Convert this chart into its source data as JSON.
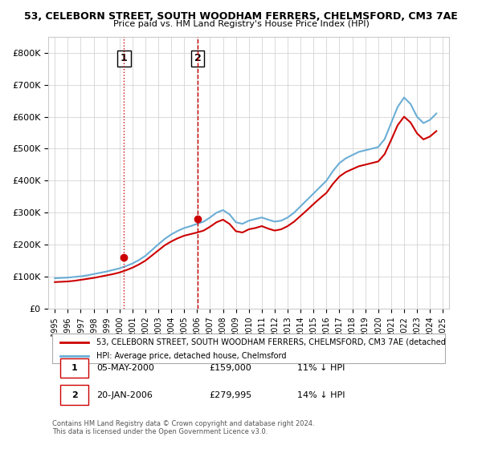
{
  "title": "53, CELEBORN STREET, SOUTH WOODHAM FERRERS, CHELMSFORD, CM3 7AE",
  "subtitle": "Price paid vs. HM Land Registry's House Price Index (HPI)",
  "ylim": [
    0,
    850000
  ],
  "yticks": [
    0,
    100000,
    200000,
    300000,
    400000,
    500000,
    600000,
    700000,
    800000
  ],
  "ytick_labels": [
    "£0",
    "£100K",
    "£200K",
    "£300K",
    "£400K",
    "£500K",
    "£600K",
    "£700K",
    "£800K"
  ],
  "hpi_color": "#6baed6",
  "price_color": "#cc0000",
  "vline_color": "#cc0000",
  "transaction1": {
    "date": 2000.35,
    "price": 159000,
    "label": "1",
    "vline_style": "dotted"
  },
  "transaction2": {
    "date": 2006.05,
    "price": 279995,
    "label": "2",
    "vline_style": "dashed"
  },
  "legend_line1": "53, CELEBORN STREET, SOUTH WOODHAM FERRERS, CHELMSFORD, CM3 7AE (detached",
  "legend_line2": "HPI: Average price, detached house, Chelmsford",
  "table_row1": [
    "1",
    "05-MAY-2000",
    "£159,000",
    "11% ↓ HPI"
  ],
  "table_row2": [
    "2",
    "20-JAN-2006",
    "£279,995",
    "14% ↓ HPI"
  ],
  "footnote": "Contains HM Land Registry data © Crown copyright and database right 2024.\nThis data is licensed under the Open Government Licence v3.0.",
  "background_color": "#ffffff",
  "grid_color": "#cccccc",
  "hpi_data_x": [
    1995,
    1995.5,
    1996,
    1996.5,
    1997,
    1997.5,
    1998,
    1998.5,
    1999,
    1999.5,
    2000,
    2000.5,
    2001,
    2001.5,
    2002,
    2002.5,
    2003,
    2003.5,
    2004,
    2004.5,
    2005,
    2005.5,
    2006,
    2006.5,
    2007,
    2007.5,
    2008,
    2008.5,
    2009,
    2009.5,
    2010,
    2010.5,
    2011,
    2011.5,
    2012,
    2012.5,
    2013,
    2013.5,
    2014,
    2014.5,
    2015,
    2015.5,
    2016,
    2016.5,
    2017,
    2017.5,
    2018,
    2018.5,
    2019,
    2019.5,
    2020,
    2020.5,
    2021,
    2021.5,
    2022,
    2022.5,
    2023,
    2023.5,
    2024,
    2024.5
  ],
  "hpi_data_y": [
    95000,
    96000,
    97000,
    99000,
    101000,
    104000,
    108000,
    112000,
    116000,
    121000,
    126000,
    133000,
    141000,
    152000,
    165000,
    183000,
    201000,
    218000,
    232000,
    243000,
    252000,
    258000,
    265000,
    272000,
    285000,
    300000,
    308000,
    295000,
    270000,
    265000,
    275000,
    280000,
    285000,
    278000,
    272000,
    275000,
    285000,
    300000,
    320000,
    340000,
    360000,
    380000,
    400000,
    430000,
    455000,
    470000,
    480000,
    490000,
    495000,
    500000,
    505000,
    530000,
    580000,
    630000,
    660000,
    640000,
    600000,
    580000,
    590000,
    610000
  ],
  "price_data_x": [
    1995,
    1995.5,
    1996,
    1996.5,
    1997,
    1997.5,
    1998,
    1998.5,
    1999,
    1999.5,
    2000,
    2000.5,
    2001,
    2001.5,
    2002,
    2002.5,
    2003,
    2003.5,
    2004,
    2004.5,
    2005,
    2005.5,
    2006,
    2006.5,
    2007,
    2007.5,
    2008,
    2008.5,
    2009,
    2009.5,
    2010,
    2010.5,
    2011,
    2011.5,
    2012,
    2012.5,
    2013,
    2013.5,
    2014,
    2014.5,
    2015,
    2015.5,
    2016,
    2016.5,
    2017,
    2017.5,
    2018,
    2018.5,
    2019,
    2019.5,
    2020,
    2020.5,
    2021,
    2021.5,
    2022,
    2022.5,
    2023,
    2023.5,
    2024,
    2024.5
  ],
  "price_data_y": [
    83000,
    84000,
    85000,
    87000,
    90000,
    93000,
    96000,
    100000,
    104000,
    108000,
    113000,
    120000,
    128000,
    138000,
    150000,
    166000,
    182000,
    198000,
    210000,
    220000,
    228000,
    233000,
    238000,
    244000,
    256000,
    270000,
    278000,
    265000,
    242000,
    238000,
    248000,
    252000,
    258000,
    250000,
    244000,
    248000,
    258000,
    272000,
    290000,
    308000,
    327000,
    345000,
    362000,
    390000,
    413000,
    427000,
    436000,
    445000,
    450000,
    455000,
    460000,
    483000,
    527000,
    573000,
    600000,
    582000,
    548000,
    529000,
    538000,
    555000
  ]
}
